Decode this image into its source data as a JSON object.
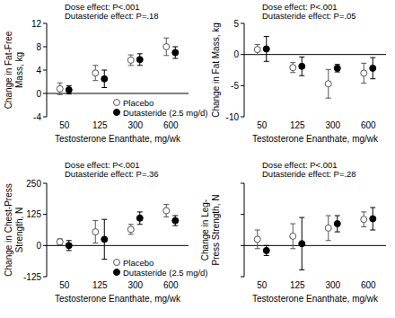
{
  "chart_data": [
    {
      "type": "scatter",
      "title": null,
      "annotations": [
        "Dose effect: P<.001",
        "Dutasteride effect: P=.18"
      ],
      "xlabel": "Testosterone Enanthate, mg/wk",
      "ylabel": [
        "Change in Fat-Free",
        "Mass, kg"
      ],
      "categories": [
        "50",
        "125",
        "300",
        "600"
      ],
      "ylim": [
        -4,
        12
      ],
      "yticks": [
        -4,
        0,
        4,
        8,
        12
      ],
      "grid": false,
      "legend": "bottom",
      "series": [
        {
          "name": "Placebo",
          "color": "#555555",
          "marker": "open-circle",
          "values": [
            0.8,
            3.5,
            5.7,
            8.0
          ],
          "errors": [
            1.0,
            1.3,
            0.9,
            1.5
          ]
        },
        {
          "name": "Dutasteride (2.5 mg/d)",
          "color": "#000000",
          "marker": "circle",
          "values": [
            0.6,
            2.5,
            5.8,
            7.0
          ],
          "errors": [
            0.7,
            1.5,
            1.0,
            1.0
          ]
        }
      ]
    },
    {
      "type": "scatter",
      "annotations": [
        "Dose effect: P<.001",
        "Dutasteride effect: P=.05"
      ],
      "xlabel": "Testosterone Enanthate, mg/wk",
      "ylabel": [
        "Change in Fat Mass, kg"
      ],
      "categories": [
        "50",
        "125",
        "300",
        "600"
      ],
      "ylim": [
        -10,
        5
      ],
      "yticks": [
        -10,
        -5,
        0,
        5
      ],
      "grid": false,
      "series": [
        {
          "color": "#555555",
          "marker": "open-circle",
          "values": [
            0.8,
            -2.1,
            -4.7,
            -3.0
          ],
          "errors": [
            0.8,
            0.8,
            2.3,
            1.6
          ]
        },
        {
          "color": "#000000",
          "marker": "circle",
          "values": [
            0.9,
            -1.9,
            -2.2,
            -2.2
          ],
          "errors": [
            2.0,
            1.5,
            0.6,
            1.7
          ]
        }
      ]
    },
    {
      "type": "scatter",
      "annotations": [
        "Dose effect: P<.001",
        "Dutasteride effect: P=.36"
      ],
      "xlabel": "Testosterone Enanthate, mg/wk",
      "ylabel": [
        "Change in Chest-Press",
        "Strength, N"
      ],
      "categories": [
        "50",
        "125",
        "300",
        "600"
      ],
      "ylim": [
        -125,
        250
      ],
      "yticks": [
        -125,
        0,
        125,
        250
      ],
      "grid": false,
      "legend": "bottom",
      "series": [
        {
          "name": "Placebo",
          "color": "#555555",
          "marker": "open-circle",
          "values": [
            15,
            55,
            65,
            140
          ],
          "errors": [
            12,
            45,
            20,
            25
          ]
        },
        {
          "name": "Dutasteride (2.5 mg/d)",
          "color": "#000000",
          "marker": "circle",
          "values": [
            0,
            25,
            110,
            100
          ],
          "errors": [
            20,
            80,
            25,
            20
          ]
        }
      ]
    },
    {
      "type": "scatter",
      "annotations": [
        "Dose effect: P<.001",
        "Dutasteride effect: P=.28"
      ],
      "xlabel": "Testosterone Enanthate, mg/wk",
      "ylabel": [
        "Change in Leg-",
        "Press Strength, N"
      ],
      "categories": [
        "50",
        "125",
        "300",
        "600"
      ],
      "ylim": [
        -500,
        1000
      ],
      "yticks": [
        -500,
        0,
        500,
        1000
      ],
      "grid": false,
      "tick_labels": "x",
      "series": [
        {
          "color": "#555555",
          "marker": "open-circle",
          "values": [
            100,
            150,
            280,
            420
          ],
          "errors": [
            150,
            200,
            200,
            120
          ]
        },
        {
          "color": "#000000",
          "marker": "circle",
          "values": [
            -80,
            30,
            350,
            430
          ],
          "errors": [
            80,
            420,
            130,
            180
          ]
        }
      ]
    }
  ]
}
